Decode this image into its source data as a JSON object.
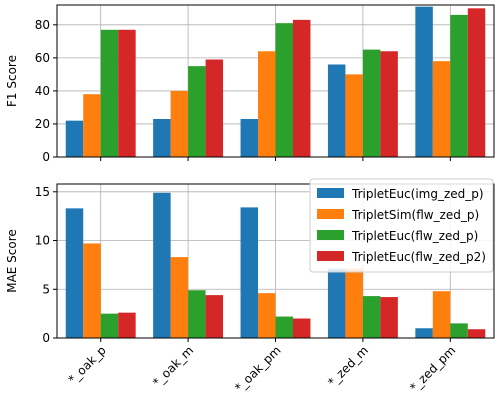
{
  "chart_data": [
    {
      "type": "bar",
      "ylabel": "F1 Score",
      "xlabel": "",
      "ylim": [
        0,
        92
      ],
      "yticks": [
        0,
        20,
        40,
        60,
        80
      ],
      "show_xtick_labels": false,
      "grid": true,
      "categories": [
        "*_oak_p",
        "*_oak_m",
        "*_oak_pm",
        "*_zed_m",
        "*_zed_pm"
      ],
      "series": [
        {
          "name": "TripletEuc(img_zed_p)",
          "color": "#1f77b4",
          "values": [
            22,
            23,
            23,
            56,
            91
          ]
        },
        {
          "name": "TripletSim(flw_zed_p)",
          "color": "#ff7f0e",
          "values": [
            38,
            40,
            64,
            50,
            58
          ]
        },
        {
          "name": "TripletEuc(flw_zed_p)",
          "color": "#2ca02c",
          "values": [
            77,
            55,
            81,
            65,
            86
          ]
        },
        {
          "name": "TripletEuc(flw_zed_p2)",
          "color": "#d62728",
          "values": [
            77,
            59,
            83,
            64,
            90
          ]
        }
      ]
    },
    {
      "type": "bar",
      "ylabel": "MAE Score",
      "xlabel": "",
      "ylim": [
        0,
        15.8
      ],
      "yticks": [
        0,
        5,
        10,
        15
      ],
      "show_xtick_labels": true,
      "grid": true,
      "legend": "top-right",
      "categories": [
        "*_oak_p",
        "*_oak_m",
        "*_oak_pm",
        "*_zed_m",
        "*_zed_pm"
      ],
      "series": [
        {
          "name": "TripletEuc(img_zed_p)",
          "color": "#1f77b4",
          "values": [
            13.3,
            14.9,
            13.4,
            7.1,
            1.0
          ]
        },
        {
          "name": "TripletSim(flw_zed_p)",
          "color": "#ff7f0e",
          "values": [
            9.7,
            8.3,
            4.6,
            7.1,
            4.8
          ]
        },
        {
          "name": "TripletEuc(flw_zed_p)",
          "color": "#2ca02c",
          "values": [
            2.5,
            4.9,
            2.2,
            4.3,
            1.5
          ]
        },
        {
          "name": "TripletEuc(flw_zed_p2)",
          "color": "#d62728",
          "values": [
            2.6,
            4.4,
            2.0,
            4.2,
            0.9
          ]
        }
      ]
    }
  ]
}
